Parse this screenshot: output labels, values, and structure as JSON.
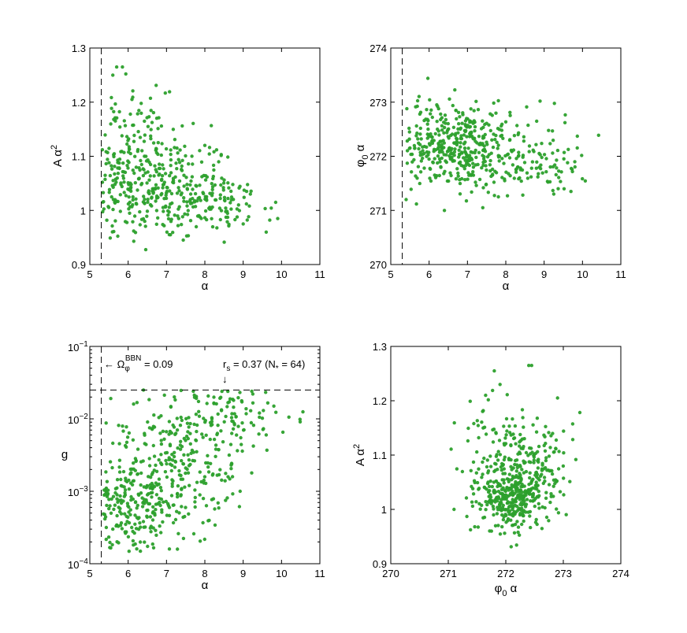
{
  "chart_data": [
    {
      "id": "tl",
      "type": "scatter",
      "xlabel": "α",
      "ylabel": "A α",
      "ylabel_sup": "2",
      "xlim": [
        5,
        11
      ],
      "ylim": [
        0.9,
        1.3
      ],
      "xticks": [
        5,
        6,
        7,
        8,
        9,
        10,
        11
      ],
      "yticks": [
        0.9,
        1,
        1.1,
        1.2,
        1.3
      ],
      "xtick_labels": [
        "5",
        "6",
        "7",
        "8",
        "9",
        "10",
        "11"
      ],
      "ytick_labels": [
        "0.9",
        "1",
        "1.1",
        "1.2",
        "1.3"
      ],
      "vline_x": 5.3,
      "color": "#2ca02c",
      "clusters": [
        {
          "cx": 6.8,
          "sx": 1.0,
          "cy": 1.04,
          "sy": 0.05,
          "n": 300
        },
        {
          "cx": 6.0,
          "sx": 0.5,
          "cy": 1.1,
          "sy": 0.06,
          "n": 150
        },
        {
          "cx": 8.5,
          "sx": 0.7,
          "cy": 1.01,
          "sy": 0.025,
          "n": 80
        }
      ],
      "highlights": [
        [
          5.7,
          1.265
        ],
        [
          5.85,
          1.265
        ],
        [
          5.6,
          1.25
        ],
        [
          6.1,
          1.205
        ],
        [
          8.0,
          1.12
        ],
        [
          9.6,
          0.96
        ],
        [
          9.0,
          0.975
        ],
        [
          9.9,
          0.985
        ]
      ]
    },
    {
      "id": "tr",
      "type": "scatter",
      "xlabel": "α",
      "ylabel": "φ",
      "ylabel_sub": "0",
      "ylabel_tail": " α",
      "xlim": [
        5,
        11
      ],
      "ylim": [
        270,
        274
      ],
      "xticks": [
        5,
        6,
        7,
        8,
        9,
        10,
        11
      ],
      "yticks": [
        270,
        271,
        272,
        273,
        274
      ],
      "xtick_labels": [
        "5",
        "6",
        "7",
        "8",
        "9",
        "10",
        "11"
      ],
      "ytick_labels": [
        "270",
        "271",
        "272",
        "273",
        "274"
      ],
      "vline_x": 5.3,
      "color": "#2ca02c",
      "clusters": [
        {
          "cx": 6.5,
          "sx": 0.8,
          "cy": 272.3,
          "sy": 0.4,
          "n": 300
        },
        {
          "cx": 7.8,
          "sx": 1.0,
          "cy": 272.0,
          "sy": 0.35,
          "n": 200
        },
        {
          "cx": 9.3,
          "sx": 0.4,
          "cy": 271.8,
          "sy": 0.25,
          "n": 30
        }
      ],
      "highlights": [
        [
          5.4,
          271.2
        ],
        [
          6.4,
          271.0
        ],
        [
          7.4,
          271.05
        ],
        [
          9.8,
          271.9
        ],
        [
          9.7,
          271.35
        ],
        [
          5.3,
          271.5
        ],
        [
          6.2,
          272.95
        ]
      ]
    },
    {
      "id": "bl",
      "type": "scatter",
      "xlabel": "α",
      "ylabel": "g",
      "yscale": "log",
      "xlim": [
        5,
        11
      ],
      "ylim": [
        0.0001,
        0.1
      ],
      "xticks": [
        5,
        6,
        7,
        8,
        9,
        10,
        11
      ],
      "xtick_labels": [
        "5",
        "6",
        "7",
        "8",
        "9",
        "10",
        "11"
      ],
      "yticks": [
        0.0001,
        0.001,
        0.01,
        0.1
      ],
      "ytick_bases": [
        "10",
        "10",
        "10",
        "10"
      ],
      "ytick_exps": [
        "−4",
        "−3",
        "−2",
        "−1"
      ],
      "vline_x": 5.3,
      "hline_y": 0.025,
      "color": "#2ca02c",
      "ann_omega": {
        "prefix": "← Ω",
        "sub": "φ",
        "sup": "BBN",
        "suffix": " = 0.09"
      },
      "ann_rs": {
        "prefix": "r",
        "sub": "s",
        "mid": " = 0.37 (N",
        "sub2": "*",
        "suffix": " = 64)",
        "arrow": "↓"
      },
      "clusters": [
        {
          "cx": 6.0,
          "sx": 0.6,
          "cy": -3.2,
          "sy": 0.3,
          "n": 220
        },
        {
          "cx": 7.3,
          "sx": 0.9,
          "cy": -2.6,
          "sy": 0.55,
          "n": 280
        },
        {
          "cx": 8.8,
          "sx": 0.7,
          "cy": -1.9,
          "sy": 0.3,
          "n": 90
        }
      ],
      "highlights": [
        [
          9.6,
          0.006
        ],
        [
          9.8,
          0.015
        ],
        [
          7.7,
          0.024
        ],
        [
          6.4,
          0.025
        ],
        [
          5.3,
          0.00035
        ],
        [
          5.6,
          0.0003
        ]
      ]
    },
    {
      "id": "br",
      "type": "scatter",
      "xlabel": "φ",
      "xlabel_sub": "0",
      "xlabel_tail": " α",
      "ylabel": "A α",
      "ylabel_sup": "2",
      "xlim": [
        270,
        274
      ],
      "ylim": [
        0.9,
        1.3
      ],
      "xticks": [
        270,
        271,
        272,
        273,
        274
      ],
      "yticks": [
        0.9,
        1,
        1.1,
        1.2,
        1.3
      ],
      "xtick_labels": [
        "270",
        "271",
        "272",
        "273",
        "274"
      ],
      "ytick_labels": [
        "0.9",
        "1",
        "1.1",
        "1.2",
        "1.3"
      ],
      "color": "#2ca02c",
      "clusters": [
        {
          "cx": 272.1,
          "sx": 0.28,
          "cy": 1.02,
          "sy": 0.025,
          "n": 250
        },
        {
          "cx": 272.5,
          "sx": 0.3,
          "cy": 1.07,
          "sy": 0.045,
          "n": 170
        },
        {
          "cx": 271.8,
          "sx": 0.3,
          "cy": 1.08,
          "sy": 0.055,
          "n": 110
        }
      ],
      "highlights": [
        [
          271.8,
          1.255
        ],
        [
          272.4,
          1.265
        ],
        [
          272.45,
          1.265
        ],
        [
          271.65,
          1.21
        ],
        [
          272.9,
          1.205
        ],
        [
          271.9,
          1.23
        ],
        [
          271.75,
          0.96
        ],
        [
          271.1,
          1.0
        ]
      ]
    }
  ]
}
